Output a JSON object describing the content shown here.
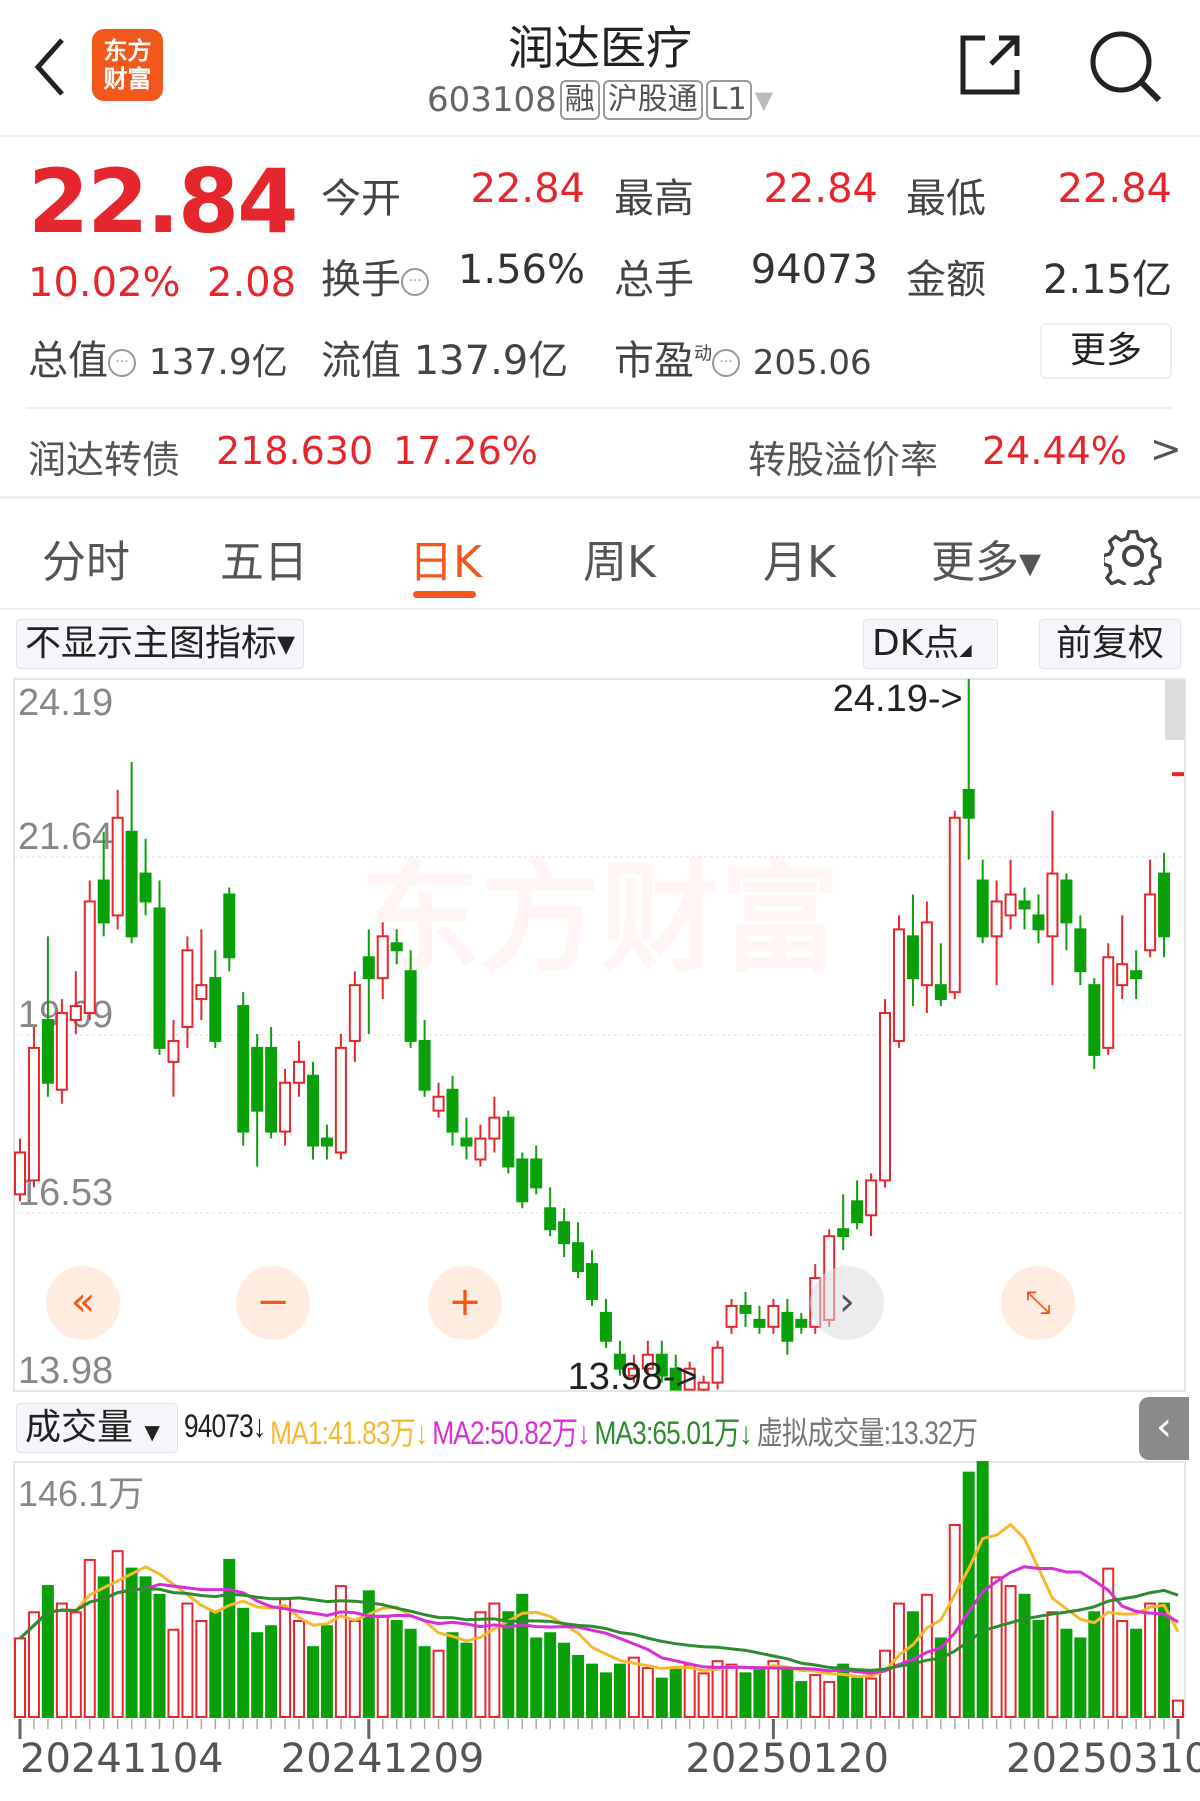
{
  "header": {
    "title": "润达医疗",
    "code": "603108",
    "tags": [
      "融",
      "沪股通",
      "L1"
    ],
    "logo_text": [
      "东方",
      "财富"
    ],
    "icons": [
      "back-icon",
      "share-icon",
      "search-icon",
      "dropdown-icon"
    ]
  },
  "quote": {
    "price": "22.84",
    "change_pct": "10.02%",
    "change": "2.08",
    "fields": [
      {
        "label": "今开",
        "value": "22.84",
        "red": true
      },
      {
        "label": "最高",
        "value": "22.84",
        "red": true
      },
      {
        "label": "最低",
        "value": "22.84",
        "red": true
      },
      {
        "label": "换手",
        "value": "1.56%",
        "red": false
      },
      {
        "label": "总手",
        "value": "94073",
        "red": false
      },
      {
        "label": "金额",
        "value": "2.15亿",
        "red": false
      }
    ],
    "total_mv_label": "总值",
    "total_mv": "137.9亿",
    "float_mv_label": "流值",
    "float_mv": "137.9亿",
    "pe_label": "市盈",
    "pe_sup": "动",
    "pe": "205.06",
    "more": "更多"
  },
  "bond": {
    "name": "润达转债",
    "price": "218.630",
    "pct": "17.26%",
    "premium_label": "转股溢价率",
    "premium": "24.44%"
  },
  "tabs": [
    {
      "label": "分时"
    },
    {
      "label": "五日"
    },
    {
      "label": "日K",
      "active": true
    },
    {
      "label": "周K"
    },
    {
      "label": "月K"
    },
    {
      "label": "更多▾"
    }
  ],
  "indicator": {
    "main": "不显示主图指标▾",
    "dk": "DK点",
    "adjust": "前复权"
  },
  "colors": {
    "up": "#e5262c",
    "down": "#0aa00a",
    "accent": "#f2571c",
    "ma1": "#f5b82e",
    "ma2": "#d62fd6",
    "ma3": "#2e8b2e"
  },
  "volume_bar": {
    "selector": "成交量",
    "vol": "94073↓",
    "ma1": "MA1:41.83万↓",
    "ma2": "MA2:50.82万↓",
    "ma3": "MA3:65.01万↓",
    "virtual": "虚拟成交量:13.32万"
  },
  "chart_data": {
    "type": "candlestick",
    "price_axis": {
      "ticks": [
        "24.19",
        "21.64",
        "19.09",
        "16.53",
        "13.98"
      ],
      "range": [
        13.98,
        24.19
      ]
    },
    "annotations": {
      "high": "24.19->",
      "low": "13.98->"
    },
    "watermark": "东方财富",
    "volume_axis": {
      "max_label": "146.1万",
      "max": 146.1
    },
    "date_labels": [
      {
        "label": "20241104",
        "index": 0
      },
      {
        "label": "20241209",
        "index": 25
      },
      {
        "label": "20250120",
        "index": 54
      },
      {
        "label": "20250310",
        "index": 83
      }
    ],
    "ohlc": [
      [
        16.8,
        17.6,
        16.7,
        17.4
      ],
      [
        17.0,
        19.2,
        16.9,
        18.9
      ],
      [
        19.3,
        20.5,
        18.2,
        18.4
      ],
      [
        18.3,
        19.6,
        18.1,
        19.4
      ],
      [
        19.3,
        20.0,
        19.1,
        19.5
      ],
      [
        19.4,
        21.3,
        19.3,
        21.0
      ],
      [
        21.3,
        22.0,
        20.5,
        20.7
      ],
      [
        20.8,
        22.6,
        20.6,
        22.2
      ],
      [
        22.0,
        23.0,
        20.4,
        20.5
      ],
      [
        21.4,
        21.9,
        20.8,
        21.0
      ],
      [
        20.9,
        21.3,
        18.8,
        18.9
      ],
      [
        18.7,
        19.3,
        18.2,
        19.0
      ],
      [
        19.2,
        20.5,
        18.9,
        20.3
      ],
      [
        19.6,
        20.6,
        19.3,
        19.8
      ],
      [
        19.9,
        20.3,
        18.9,
        19.0
      ],
      [
        21.1,
        21.2,
        20.0,
        20.2
      ],
      [
        19.5,
        19.7,
        17.5,
        17.7
      ],
      [
        18.9,
        19.1,
        17.2,
        18.0
      ],
      [
        18.9,
        19.2,
        17.6,
        17.7
      ],
      [
        17.7,
        18.6,
        17.5,
        18.4
      ],
      [
        18.4,
        19.0,
        18.2,
        18.7
      ],
      [
        18.5,
        18.7,
        17.3,
        17.5
      ],
      [
        17.6,
        17.8,
        17.3,
        17.5
      ],
      [
        17.4,
        19.1,
        17.3,
        18.9
      ],
      [
        19.0,
        20.0,
        18.7,
        19.8
      ],
      [
        20.2,
        20.6,
        19.1,
        19.9
      ],
      [
        19.9,
        20.7,
        19.6,
        20.5
      ],
      [
        20.4,
        20.6,
        20.1,
        20.3
      ],
      [
        20.0,
        20.3,
        18.9,
        19.0
      ],
      [
        19.0,
        19.3,
        18.2,
        18.3
      ],
      [
        18.0,
        18.4,
        17.9,
        18.2
      ],
      [
        18.3,
        18.5,
        17.5,
        17.7
      ],
      [
        17.6,
        17.9,
        17.3,
        17.5
      ],
      [
        17.3,
        17.8,
        17.2,
        17.6
      ],
      [
        17.6,
        18.2,
        17.4,
        17.9
      ],
      [
        17.9,
        18.0,
        17.1,
        17.2
      ],
      [
        17.3,
        17.4,
        16.6,
        16.7
      ],
      [
        17.3,
        17.5,
        16.8,
        16.9
      ],
      [
        16.6,
        16.9,
        16.2,
        16.3
      ],
      [
        16.4,
        16.6,
        15.9,
        16.1
      ],
      [
        16.1,
        16.4,
        15.6,
        15.7
      ],
      [
        15.8,
        16.0,
        15.2,
        15.3
      ],
      [
        15.1,
        15.3,
        14.6,
        14.7
      ],
      [
        14.5,
        14.7,
        14.2,
        14.3
      ],
      [
        14.2,
        14.5,
        14.1,
        14.3
      ],
      [
        14.3,
        14.7,
        14.2,
        14.5
      ],
      [
        14.5,
        14.7,
        14.1,
        14.2
      ],
      [
        14.3,
        14.5,
        13.99,
        14.0
      ],
      [
        14.0,
        14.4,
        13.99,
        14.3
      ],
      [
        14.0,
        14.2,
        13.98,
        14.1
      ],
      [
        14.1,
        14.7,
        14.0,
        14.6
      ],
      [
        14.9,
        15.3,
        14.8,
        15.2
      ],
      [
        15.2,
        15.4,
        14.9,
        15.1
      ],
      [
        15.0,
        15.2,
        14.8,
        14.9
      ],
      [
        14.9,
        15.3,
        14.8,
        15.2
      ],
      [
        15.1,
        15.3,
        14.5,
        14.7
      ],
      [
        15.0,
        15.1,
        14.8,
        14.9
      ],
      [
        14.9,
        15.8,
        14.8,
        15.6
      ],
      [
        15.0,
        16.3,
        14.9,
        16.2
      ],
      [
        16.3,
        16.8,
        16.0,
        16.2
      ],
      [
        16.7,
        17.0,
        16.3,
        16.4
      ],
      [
        16.5,
        17.1,
        16.2,
        17.0
      ],
      [
        17.0,
        19.6,
        16.9,
        19.4
      ],
      [
        19.0,
        20.8,
        18.9,
        20.6
      ],
      [
        20.5,
        21.1,
        19.5,
        19.9
      ],
      [
        19.8,
        21.0,
        19.4,
        20.7
      ],
      [
        19.8,
        20.4,
        19.5,
        19.6
      ],
      [
        19.7,
        22.3,
        19.6,
        22.2
      ],
      [
        22.6,
        24.19,
        21.6,
        22.2
      ],
      [
        21.3,
        21.6,
        20.4,
        20.5
      ],
      [
        20.5,
        21.3,
        19.8,
        21.0
      ],
      [
        20.8,
        21.6,
        20.6,
        21.1
      ],
      [
        21.0,
        21.2,
        20.6,
        20.9
      ],
      [
        20.8,
        21.1,
        20.4,
        20.6
      ],
      [
        20.5,
        22.3,
        19.8,
        21.4
      ],
      [
        21.3,
        21.4,
        20.3,
        20.7
      ],
      [
        20.6,
        20.8,
        19.8,
        20.0
      ],
      [
        19.8,
        19.9,
        18.6,
        18.8
      ],
      [
        18.9,
        20.4,
        18.8,
        20.2
      ],
      [
        19.8,
        20.8,
        19.6,
        20.1
      ],
      [
        20.0,
        20.3,
        19.6,
        19.9
      ],
      [
        20.3,
        21.6,
        20.2,
        21.1
      ],
      [
        21.4,
        21.7,
        20.2,
        20.5
      ],
      [
        22.84,
        22.84,
        22.84,
        22.84
      ]
    ],
    "volume": [
      45,
      60,
      75,
      65,
      60,
      90,
      80,
      95,
      85,
      80,
      70,
      50,
      65,
      55,
      60,
      90,
      62,
      48,
      52,
      68,
      55,
      40,
      52,
      75,
      55,
      72,
      58,
      55,
      50,
      40,
      38,
      48,
      42,
      60,
      65,
      60,
      70,
      45,
      48,
      42,
      35,
      30,
      25,
      30,
      34,
      28,
      22,
      28,
      30,
      25,
      32,
      30,
      25,
      28,
      32,
      28,
      20,
      24,
      20,
      30,
      22,
      22,
      38,
      65,
      60,
      70,
      45,
      110,
      140,
      146.1,
      80,
      75,
      70,
      55,
      60,
      50,
      45,
      60,
      85,
      55,
      50,
      65,
      65,
      9.4
    ]
  }
}
